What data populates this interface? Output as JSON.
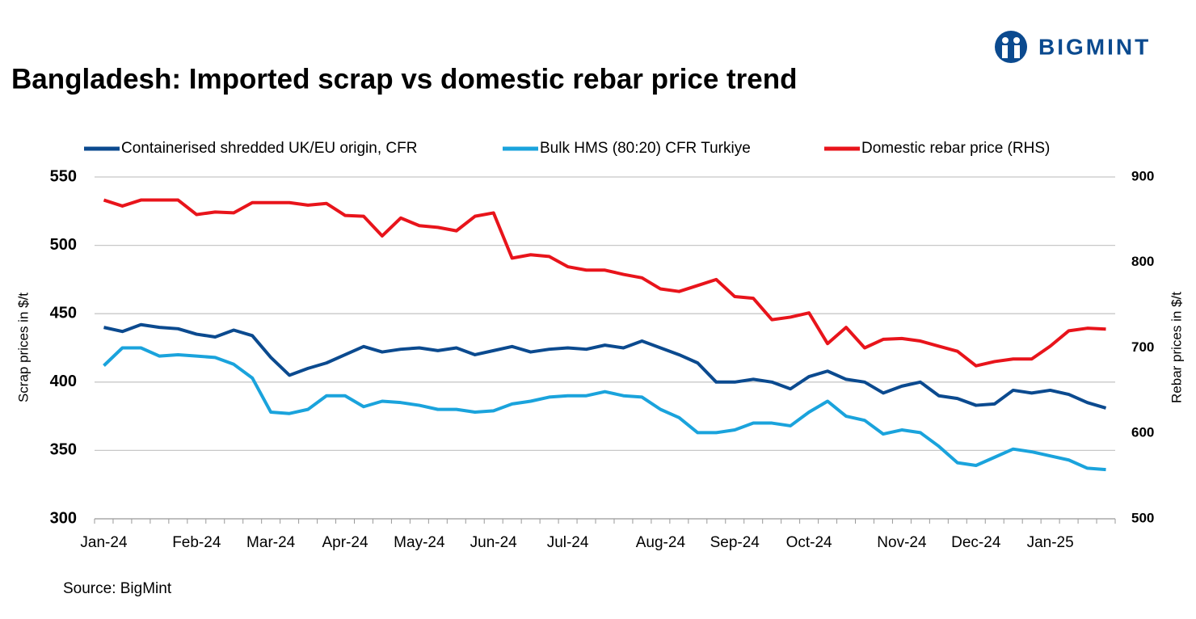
{
  "logo": "BIGMINT",
  "chart_data": {
    "type": "line",
    "title": "Bangladesh: Imported scrap vs domestic rebar price trend",
    "y_label": "Scrap prices in $/t",
    "y2_label": "Rebar prices in $/t",
    "source": "Source: BigMint",
    "categories": [
      "Jan-24",
      null,
      null,
      null,
      null,
      "Feb-24",
      null,
      null,
      null,
      "Mar-24",
      null,
      null,
      null,
      "Apr-24",
      null,
      null,
      null,
      "May-24",
      null,
      null,
      null,
      "Jun-24",
      null,
      null,
      null,
      "Jul-24",
      null,
      null,
      null,
      null,
      "Aug-24",
      null,
      null,
      null,
      "Sep-24",
      null,
      null,
      null,
      "Oct-24",
      null,
      null,
      null,
      null,
      "Nov-24",
      null,
      null,
      null,
      "Dec-24",
      null,
      null,
      null,
      "Jan-25",
      null,
      null,
      null
    ],
    "ylim": [
      300,
      550
    ],
    "yticks": [
      300,
      350,
      400,
      450,
      500,
      550
    ],
    "y2lim": [
      500,
      900
    ],
    "y2ticks": [
      500,
      600,
      700,
      800,
      900
    ],
    "grid": true,
    "legend": "top",
    "series": [
      {
        "name": "Containerised shredded UK/EU origin, CFR",
        "color": "#0b4a8f",
        "values": [
          440,
          437,
          442,
          440,
          439,
          435,
          433,
          438,
          434,
          418,
          405,
          410,
          414,
          420,
          426,
          422,
          424,
          425,
          423,
          425,
          420,
          423,
          426,
          422,
          424,
          425,
          424,
          427,
          425,
          430,
          425,
          420,
          414,
          400,
          400,
          402,
          400,
          395,
          404,
          408,
          402,
          400,
          392,
          397,
          400,
          390,
          388,
          383,
          384,
          394,
          392,
          394,
          391,
          385,
          381
        ]
      },
      {
        "name": "Bulk HMS (80:20) CFR Turkiye",
        "color": "#1aa3dc",
        "values": [
          412,
          425,
          425,
          419,
          420,
          419,
          418,
          413,
          403,
          378,
          377,
          380,
          390,
          390,
          382,
          386,
          385,
          383,
          380,
          380,
          378,
          379,
          384,
          386,
          389,
          390,
          390,
          393,
          390,
          389,
          380,
          374,
          363,
          363,
          365,
          370,
          370,
          368,
          378,
          386,
          375,
          372,
          362,
          365,
          363,
          353,
          341,
          339,
          345,
          351,
          349,
          346,
          343,
          337,
          336
        ]
      },
      {
        "name": "Domestic rebar price (RHS)",
        "color": "#e8141b",
        "axis": "y2",
        "values": [
          873,
          866,
          873,
          873,
          873,
          856,
          859,
          858,
          870,
          870,
          870,
          867,
          869,
          855,
          854,
          831,
          852,
          843,
          841,
          837,
          854,
          858,
          805,
          809,
          807,
          795,
          791,
          791,
          786,
          782,
          769,
          766,
          773,
          780,
          760,
          758,
          733,
          736,
          741,
          705,
          724,
          700,
          710,
          711,
          708,
          702,
          696,
          679,
          684,
          687,
          687,
          702,
          720,
          723,
          722
        ]
      }
    ]
  }
}
